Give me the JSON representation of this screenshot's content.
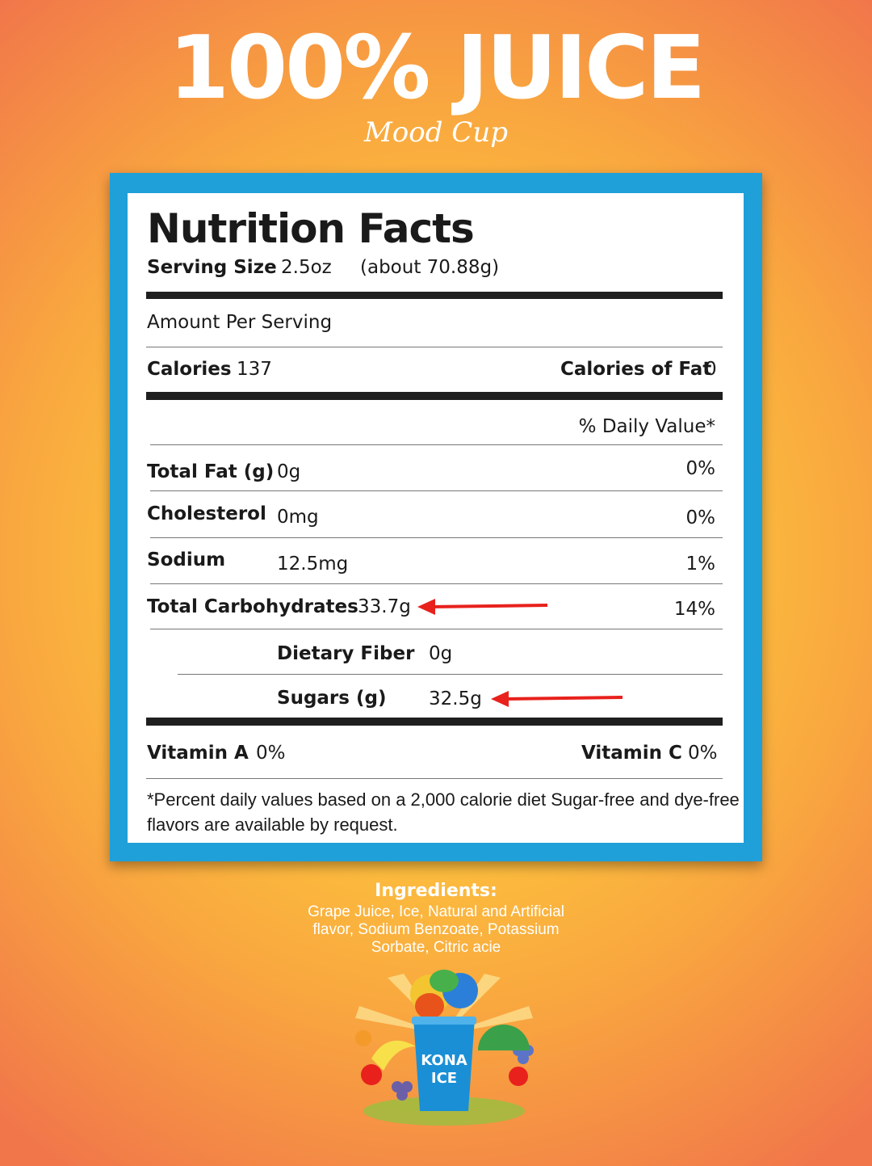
{
  "header": {
    "title": "100% JUICE",
    "subtitle": "Mood Cup"
  },
  "nutrition": {
    "heading": "Nutrition Facts",
    "serving_size_label": "Serving Size",
    "serving_size_value": "2.5oz",
    "serving_size_grams": "(about 70.88g)",
    "amount_per_serving": "Amount Per Serving",
    "calories_label": "Calories",
    "calories_value": "137",
    "calories_fat_label": "Calories of Fat",
    "calories_fat_value": "0",
    "daily_value_header": "% Daily Value*",
    "rows": [
      {
        "label": "Total Fat (g)",
        "amount": "0g",
        "percent": "0%"
      },
      {
        "label": "Cholesterol",
        "amount": "0mg",
        "percent": "0%"
      },
      {
        "label": "Sodium",
        "amount": "12.5mg",
        "percent": "1%"
      },
      {
        "label": "Total Carbohydrates",
        "amount": "33.7g",
        "percent": "14%"
      }
    ],
    "sub_rows": [
      {
        "label": "Dietary Fiber",
        "amount": "0g"
      },
      {
        "label": "Sugars (g)",
        "amount": "32.5g"
      }
    ],
    "vitamin_a_label": "Vitamin A",
    "vitamin_a_value": "0%",
    "vitamin_c_label": "Vitamin C",
    "vitamin_c_value": "0%",
    "footnote_line1": "*Percent daily values based on a 2,000 calorie diet Sugar-free and dye-free",
    "footnote_line2": "flavors are available by request."
  },
  "ingredients": {
    "heading": "Ingredients:",
    "line1": "Grape Juice, Ice, Natural and Artificial",
    "line2": "flavor, Sodium Benzoate, Potassium",
    "line3": "Sorbate, Citric acie"
  },
  "logo": {
    "brand_line1": "KONA",
    "brand_line2": "ICE"
  },
  "colors": {
    "frame_blue": "#1fa0d8",
    "arrow_red": "#e8211c",
    "cup_blue": "#1a8fd6"
  }
}
